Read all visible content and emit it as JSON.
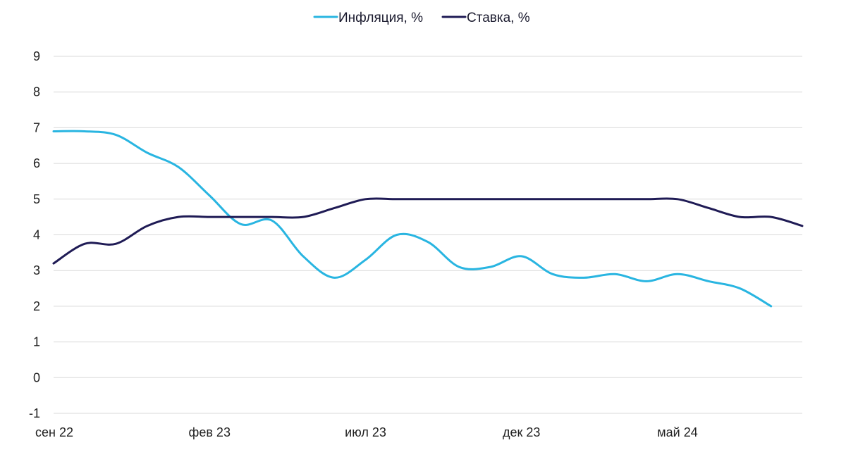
{
  "chart_data": {
    "type": "line",
    "title": "",
    "xlabel": "",
    "ylabel": "",
    "x_tick_labels": [
      "сен 22",
      "фев 23",
      "июл 23",
      "дек 23",
      "май 24"
    ],
    "x_ticks_month_index": [
      0,
      5,
      10,
      15,
      20
    ],
    "y_ticks": [
      "9",
      "8",
      "7",
      "6",
      "5",
      "4",
      "3",
      "2",
      "1",
      "0",
      "-1"
    ],
    "ylim": [
      -1,
      9
    ],
    "xlim": [
      0,
      24.0
    ],
    "grid": "horizontal",
    "legend_position": "top-center",
    "series": [
      {
        "name": "Инфляция, %",
        "color": "#29b5e1",
        "x": [
          0,
          1,
          2,
          3,
          4,
          5,
          6,
          7,
          8,
          9,
          10,
          11,
          12,
          13,
          14,
          15,
          16,
          17,
          18,
          19,
          20,
          21,
          22,
          23
        ],
        "values": [
          6.9,
          6.9,
          6.8,
          6.3,
          5.9,
          5.1,
          4.3,
          4.4,
          3.4,
          2.8,
          3.3,
          4.0,
          3.8,
          3.1,
          3.1,
          3.4,
          2.9,
          2.8,
          2.9,
          2.7,
          2.9,
          2.7,
          2.5,
          2.0
        ]
      },
      {
        "name": "Ставка, %",
        "color": "#1f1b55",
        "x": [
          0,
          1,
          2,
          3,
          4,
          5,
          6,
          7,
          8,
          9,
          10,
          11,
          12,
          13,
          14,
          15,
          16,
          17,
          18,
          19,
          20,
          21,
          22,
          23,
          24
        ],
        "values": [
          3.2,
          3.75,
          3.75,
          4.25,
          4.5,
          4.5,
          4.5,
          4.5,
          4.5,
          4.75,
          5.0,
          5.0,
          5.0,
          5.0,
          5.0,
          5.0,
          5.0,
          5.0,
          5.0,
          5.0,
          5.0,
          4.75,
          4.5,
          4.5,
          4.25
        ]
      }
    ]
  }
}
